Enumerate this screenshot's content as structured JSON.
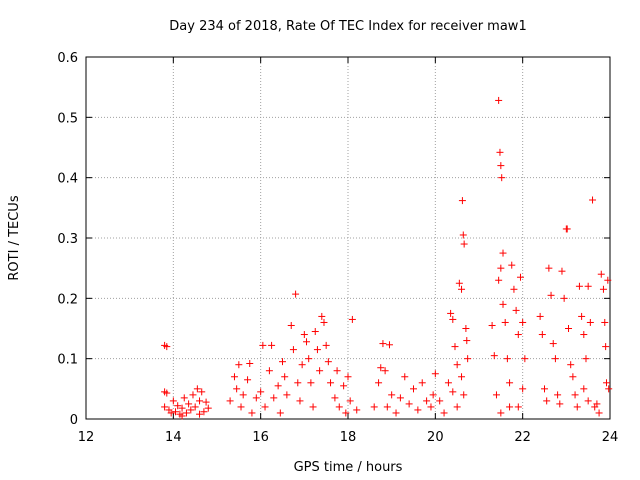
{
  "chart_data": {
    "type": "scatter",
    "title": "Day 234 of 2018, Rate Of TEC Index for receiver maw1",
    "xlabel": "GPS time / hours",
    "ylabel": "ROTI / TECUs",
    "xlim": [
      12,
      24
    ],
    "ylim": [
      0,
      0.6
    ],
    "xticks": [
      "12",
      "14",
      "16",
      "18",
      "20",
      "22",
      "24"
    ],
    "yticks": [
      "0",
      "0.1",
      "0.2",
      "0.3",
      "0.4",
      "0.5",
      "0.6"
    ],
    "grid": true,
    "marker": "plus",
    "color": "#ff0000",
    "series": [
      {
        "name": "ROTI",
        "points": [
          [
            13.8,
            0.122
          ],
          [
            13.85,
            0.12
          ],
          [
            13.8,
            0.045
          ],
          [
            13.85,
            0.043
          ],
          [
            13.8,
            0.02
          ],
          [
            13.9,
            0.015
          ],
          [
            13.95,
            0.01
          ],
          [
            14.0,
            0.03
          ],
          [
            14.05,
            0.012
          ],
          [
            14.1,
            0.022
          ],
          [
            14.15,
            0.008
          ],
          [
            14.2,
            0.018
          ],
          [
            14.25,
            0.035
          ],
          [
            14.3,
            0.01
          ],
          [
            14.35,
            0.025
          ],
          [
            14.4,
            0.015
          ],
          [
            14.45,
            0.04
          ],
          [
            14.5,
            0.02
          ],
          [
            14.55,
            0.05
          ],
          [
            14.6,
            0.03
          ],
          [
            14.65,
            0.045
          ],
          [
            14.7,
            0.012
          ],
          [
            14.75,
            0.028
          ],
          [
            14.8,
            0.018
          ],
          [
            14.2,
            0.005
          ],
          [
            14.6,
            0.008
          ],
          [
            15.3,
            0.03
          ],
          [
            15.4,
            0.07
          ],
          [
            15.45,
            0.05
          ],
          [
            15.5,
            0.09
          ],
          [
            15.55,
            0.02
          ],
          [
            15.6,
            0.04
          ],
          [
            15.7,
            0.065
          ],
          [
            15.75,
            0.092
          ],
          [
            15.8,
            0.01
          ],
          [
            15.9,
            0.035
          ],
          [
            16.0,
            0.045
          ],
          [
            16.05,
            0.122
          ],
          [
            16.1,
            0.02
          ],
          [
            16.2,
            0.08
          ],
          [
            16.25,
            0.122
          ],
          [
            16.3,
            0.035
          ],
          [
            16.4,
            0.055
          ],
          [
            16.45,
            0.01
          ],
          [
            16.5,
            0.095
          ],
          [
            16.55,
            0.07
          ],
          [
            16.6,
            0.04
          ],
          [
            16.7,
            0.155
          ],
          [
            16.75,
            0.115
          ],
          [
            16.8,
            0.207
          ],
          [
            16.85,
            0.06
          ],
          [
            16.9,
            0.03
          ],
          [
            16.95,
            0.09
          ],
          [
            17.0,
            0.14
          ],
          [
            17.05,
            0.128
          ],
          [
            17.1,
            0.1
          ],
          [
            17.15,
            0.06
          ],
          [
            17.2,
            0.02
          ],
          [
            17.25,
            0.145
          ],
          [
            17.3,
            0.115
          ],
          [
            17.35,
            0.08
          ],
          [
            17.4,
            0.17
          ],
          [
            17.45,
            0.16
          ],
          [
            17.5,
            0.122
          ],
          [
            17.55,
            0.095
          ],
          [
            17.6,
            0.06
          ],
          [
            17.7,
            0.035
          ],
          [
            17.75,
            0.08
          ],
          [
            17.8,
            0.02
          ],
          [
            17.9,
            0.055
          ],
          [
            17.95,
            0.01
          ],
          [
            18.0,
            0.07
          ],
          [
            18.05,
            0.03
          ],
          [
            18.1,
            0.165
          ],
          [
            18.2,
            0.015
          ],
          [
            18.6,
            0.02
          ],
          [
            18.7,
            0.06
          ],
          [
            18.75,
            0.085
          ],
          [
            18.8,
            0.125
          ],
          [
            18.85,
            0.08
          ],
          [
            18.9,
            0.02
          ],
          [
            18.95,
            0.123
          ],
          [
            19.0,
            0.04
          ],
          [
            19.1,
            0.01
          ],
          [
            19.2,
            0.035
          ],
          [
            19.3,
            0.07
          ],
          [
            19.4,
            0.025
          ],
          [
            19.5,
            0.05
          ],
          [
            19.6,
            0.015
          ],
          [
            19.7,
            0.06
          ],
          [
            19.8,
            0.03
          ],
          [
            19.9,
            0.02
          ],
          [
            19.95,
            0.04
          ],
          [
            20.0,
            0.075
          ],
          [
            20.1,
            0.03
          ],
          [
            20.2,
            0.01
          ],
          [
            20.3,
            0.06
          ],
          [
            20.35,
            0.175
          ],
          [
            20.4,
            0.165
          ],
          [
            20.45,
            0.12
          ],
          [
            20.5,
            0.09
          ],
          [
            20.55,
            0.225
          ],
          [
            20.6,
            0.215
          ],
          [
            20.62,
            0.362
          ],
          [
            20.64,
            0.305
          ],
          [
            20.66,
            0.29
          ],
          [
            20.7,
            0.15
          ],
          [
            20.72,
            0.13
          ],
          [
            20.74,
            0.1
          ],
          [
            20.6,
            0.07
          ],
          [
            20.65,
            0.04
          ],
          [
            20.5,
            0.02
          ],
          [
            20.4,
            0.045
          ],
          [
            21.3,
            0.155
          ],
          [
            21.35,
            0.105
          ],
          [
            21.4,
            0.04
          ],
          [
            21.45,
            0.528
          ],
          [
            21.48,
            0.442
          ],
          [
            21.5,
            0.42
          ],
          [
            21.52,
            0.4
          ],
          [
            21.55,
            0.275
          ],
          [
            21.5,
            0.25
          ],
          [
            21.45,
            0.23
          ],
          [
            21.55,
            0.19
          ],
          [
            21.6,
            0.16
          ],
          [
            21.65,
            0.1
          ],
          [
            21.7,
            0.06
          ],
          [
            21.75,
            0.255
          ],
          [
            21.8,
            0.215
          ],
          [
            21.85,
            0.18
          ],
          [
            21.9,
            0.14
          ],
          [
            21.95,
            0.235
          ],
          [
            22.0,
            0.16
          ],
          [
            22.05,
            0.1
          ],
          [
            22.0,
            0.05
          ],
          [
            21.9,
            0.02
          ],
          [
            21.7,
            0.02
          ],
          [
            21.5,
            0.01
          ],
          [
            22.4,
            0.17
          ],
          [
            22.45,
            0.14
          ],
          [
            22.5,
            0.05
          ],
          [
            22.55,
            0.03
          ],
          [
            22.6,
            0.25
          ],
          [
            22.65,
            0.205
          ],
          [
            22.7,
            0.125
          ],
          [
            22.75,
            0.1
          ],
          [
            22.8,
            0.04
          ],
          [
            22.85,
            0.025
          ],
          [
            22.9,
            0.245
          ],
          [
            22.95,
            0.2
          ],
          [
            23.0,
            0.315
          ],
          [
            23.02,
            0.315
          ],
          [
            23.05,
            0.15
          ],
          [
            23.1,
            0.09
          ],
          [
            23.15,
            0.07
          ],
          [
            23.2,
            0.04
          ],
          [
            23.25,
            0.02
          ],
          [
            23.3,
            0.22
          ],
          [
            23.35,
            0.17
          ],
          [
            23.4,
            0.14
          ],
          [
            23.45,
            0.1
          ],
          [
            23.5,
            0.22
          ],
          [
            23.55,
            0.16
          ],
          [
            23.6,
            0.363
          ],
          [
            23.65,
            0.02
          ],
          [
            23.7,
            0.025
          ],
          [
            23.75,
            0.01
          ],
          [
            23.8,
            0.24
          ],
          [
            23.85,
            0.215
          ],
          [
            23.88,
            0.16
          ],
          [
            23.9,
            0.12
          ],
          [
            23.92,
            0.06
          ],
          [
            23.95,
            0.23
          ],
          [
            23.97,
            0.05
          ],
          [
            23.5,
            0.03
          ],
          [
            23.4,
            0.05
          ]
        ]
      }
    ]
  }
}
